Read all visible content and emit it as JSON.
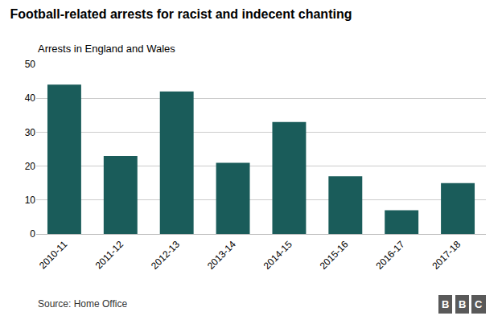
{
  "chart_data": {
    "type": "bar",
    "title": "Football-related arrests for racist and indecent chanting",
    "subtitle": "Arrests in England and Wales",
    "annotations": [
      "Source: Home Office",
      "BBC"
    ],
    "categories": [
      "2010-11",
      "2011-12",
      "2012-13",
      "2013-14",
      "2014-15",
      "2015-16",
      "2016-17",
      "2017-18"
    ],
    "values": [
      44,
      23,
      42,
      21,
      33,
      17,
      7,
      15
    ],
    "color": "#1a5c5a",
    "ylim": [
      0,
      50
    ],
    "yticks": [
      0,
      10,
      20,
      30,
      40,
      50
    ],
    "grid": true
  }
}
